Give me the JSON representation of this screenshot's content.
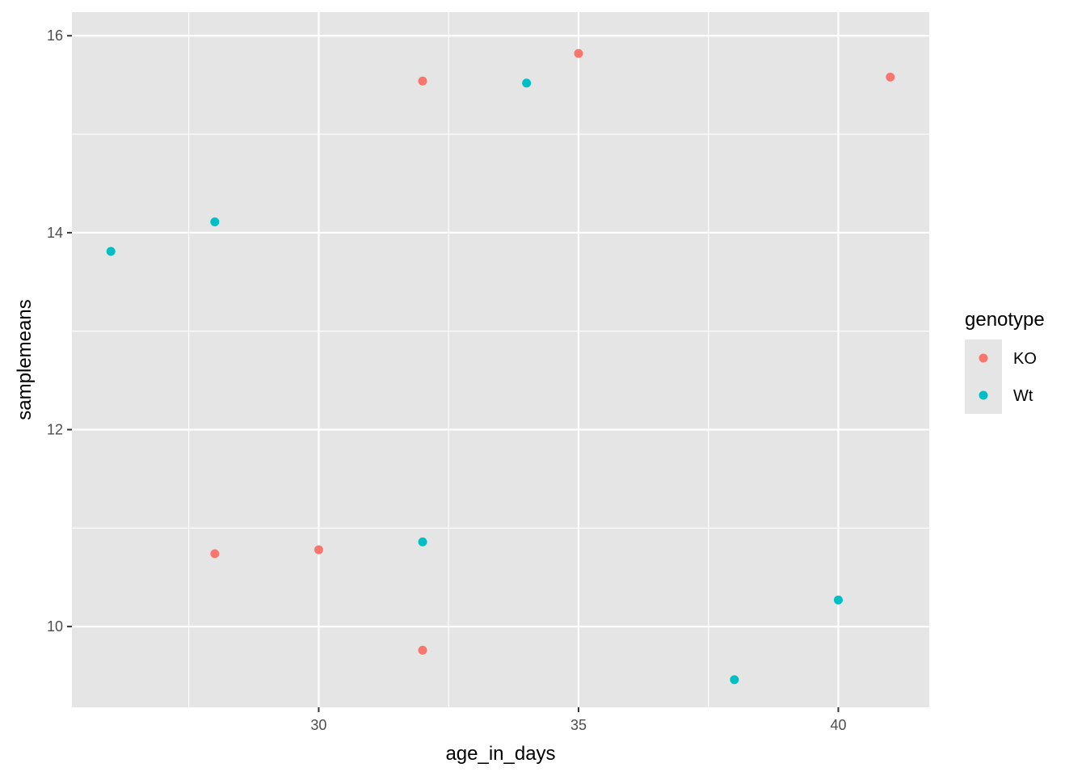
{
  "chart_data": {
    "type": "scatter",
    "xlabel": "age_in_days",
    "ylabel": "samplemeans",
    "xlim": [
      25.25,
      41.75
    ],
    "ylim": [
      9.18,
      16.24
    ],
    "x_ticks": [
      30,
      35,
      40
    ],
    "x_minor": [
      27.5,
      32.5,
      37.5
    ],
    "y_ticks": [
      10,
      12,
      14,
      16
    ],
    "y_minor": [
      11,
      13,
      15
    ],
    "grid": true,
    "legend": {
      "title": "genotype",
      "position": "right"
    },
    "series": [
      {
        "name": "KO",
        "color": "#F8766D",
        "points": [
          {
            "x": 28,
            "y": 10.74
          },
          {
            "x": 30,
            "y": 10.78
          },
          {
            "x": 32,
            "y": 9.76
          },
          {
            "x": 32,
            "y": 15.54
          },
          {
            "x": 35,
            "y": 15.82
          },
          {
            "x": 41,
            "y": 15.58
          }
        ]
      },
      {
        "name": "Wt",
        "color": "#00BFC4",
        "points": [
          {
            "x": 26,
            "y": 13.81
          },
          {
            "x": 28,
            "y": 14.11
          },
          {
            "x": 32,
            "y": 10.86
          },
          {
            "x": 34,
            "y": 15.52
          },
          {
            "x": 38,
            "y": 9.46
          },
          {
            "x": 40,
            "y": 10.27
          }
        ]
      }
    ]
  }
}
